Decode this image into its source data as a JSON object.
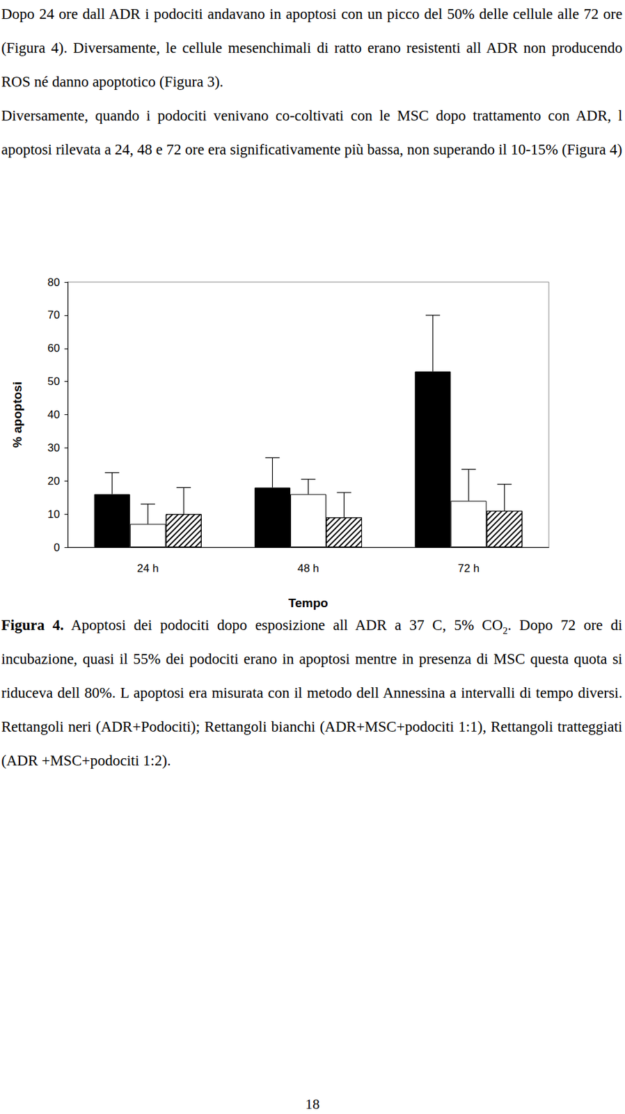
{
  "paragraphs": [
    "Dopo 24 ore dall ADR i podociti andavano in apoptosi con un picco del 50% delle cellule alle 72 ore (Figura 4). Diversamente, le cellule mesenchimali di ratto erano resistenti all ADR non producendo ROS né danno apoptotico (Figura 3).",
    "Diversamente, quando i podociti venivano co-coltivati con le MSC dopo trattamento con ADR, l apoptosi rilevata a 24, 48 e 72 ore era significativamente più bassa, non superando il 10-15% (Figura 4)"
  ],
  "chart_data": {
    "type": "bar",
    "x_label": "Tempo",
    "y_label": "% apoptosi",
    "categories": [
      "24 h",
      "48 h",
      "72 h"
    ],
    "series": [
      {
        "color": "#000000",
        "values": [
          16,
          18,
          53
        ],
        "errors": [
          6.5,
          9,
          17
        ]
      },
      {
        "color": "#ffffff",
        "values": [
          7,
          16,
          14
        ],
        "errors": [
          6,
          4.5,
          9.5
        ]
      },
      {
        "color": "#ffffff",
        "values": [
          10,
          9,
          11
        ],
        "errors": [
          8,
          7.5,
          8
        ]
      }
    ],
    "ylim": [
      0,
      80
    ],
    "yticks": [
      0,
      10,
      20,
      30,
      40,
      50,
      60,
      70,
      80
    ],
    "grid": false
  },
  "caption": [
    {
      "text": "Figura 4.",
      "bold": true
    },
    {
      "text": " Apoptosi dei podociti dopo esposizione all ADR a 37 C, 5% CO"
    },
    {
      "text": "2",
      "sub": true
    },
    {
      "text": ". Dopo 72 ore di incubazione, quasi il 55% dei podociti erano in apoptosi mentre in presenza di MSC questa quota si riduceva dell 80%. L apoptosi era misurata con il metodo dell Annessina a intervalli di tempo diversi. Rettangoli neri (ADR+Podociti); Rettangoli bianchi (ADR+MSC+podociti 1:1), Rettangoli tratteggiati (ADR +MSC+podociti 1:2)."
    }
  ],
  "page_number": "18"
}
